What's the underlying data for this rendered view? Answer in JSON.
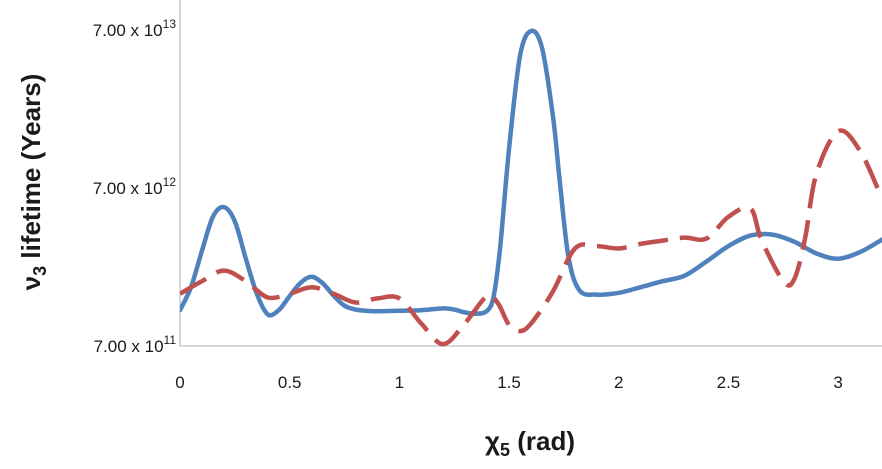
{
  "chart_data": {
    "type": "line",
    "title": "",
    "xlabel": {
      "main": "χ",
      "sub": "5",
      "rest": " (rad)"
    },
    "ylabel": {
      "main": "ν",
      "sub": "3",
      "rest": " lifetime (Years)"
    },
    "y_scale": "log",
    "xlim": [
      0,
      3.2
    ],
    "ylim": [
      700000000000.0,
      70000000000000.0
    ],
    "x_ticks": [
      0,
      0.5,
      1,
      1.5,
      2,
      2.5,
      3
    ],
    "x_tick_labels": [
      "0",
      "0.5",
      "1",
      "1.5",
      "2",
      "2.5",
      "3"
    ],
    "y_ticks": [
      {
        "value": 700000000000.0,
        "mantissa": "7.00 x 10",
        "exponent": "11"
      },
      {
        "value": 7000000000000.0,
        "mantissa": "7.00 x 10",
        "exponent": "12"
      },
      {
        "value": 70000000000000.0,
        "mantissa": "7.00 x 10",
        "exponent": "13"
      }
    ],
    "grid": false,
    "legend": false,
    "series": [
      {
        "color": "#4f81bd",
        "style": "solid",
        "points": [
          [
            0,
            1180000000000.0
          ],
          [
            0.05,
            1650000000000.0
          ],
          [
            0.1,
            2800000000000.0
          ],
          [
            0.15,
            4600000000000.0
          ],
          [
            0.2,
            5300000000000.0
          ],
          [
            0.25,
            4300000000000.0
          ],
          [
            0.3,
            2500000000000.0
          ],
          [
            0.35,
            1500000000000.0
          ],
          [
            0.4,
            1110000000000.0
          ],
          [
            0.45,
            1180000000000.0
          ],
          [
            0.5,
            1450000000000.0
          ],
          [
            0.55,
            1760000000000.0
          ],
          [
            0.6,
            1920000000000.0
          ],
          [
            0.65,
            1750000000000.0
          ],
          [
            0.7,
            1460000000000.0
          ],
          [
            0.75,
            1260000000000.0
          ],
          [
            0.8,
            1190000000000.0
          ],
          [
            0.85,
            1170000000000.0
          ],
          [
            0.9,
            1160000000000.0
          ],
          [
            1.0,
            1170000000000.0
          ],
          [
            1.1,
            1180000000000.0
          ],
          [
            1.2,
            1210000000000.0
          ],
          [
            1.25,
            1190000000000.0
          ],
          [
            1.3,
            1140000000000.0
          ],
          [
            1.35,
            1120000000000.0
          ],
          [
            1.4,
            1170000000000.0
          ],
          [
            1.43,
            1450000000000.0
          ],
          [
            1.46,
            3000000000000.0
          ],
          [
            1.5,
            12500000000000.0
          ],
          [
            1.55,
            48000000000000.0
          ],
          [
            1.6,
            69000000000000.0
          ],
          [
            1.65,
            54000000000000.0
          ],
          [
            1.7,
            20000000000000.0
          ],
          [
            1.73,
            8000000000000.0
          ],
          [
            1.77,
            2600000000000.0
          ],
          [
            1.82,
            1580000000000.0
          ],
          [
            1.9,
            1480000000000.0
          ],
          [
            2.0,
            1520000000000.0
          ],
          [
            2.1,
            1650000000000.0
          ],
          [
            2.2,
            1800000000000.0
          ],
          [
            2.3,
            1950000000000.0
          ],
          [
            2.4,
            2400000000000.0
          ],
          [
            2.5,
            3000000000000.0
          ],
          [
            2.6,
            3500000000000.0
          ],
          [
            2.7,
            3550000000000.0
          ],
          [
            2.8,
            3200000000000.0
          ],
          [
            2.9,
            2700000000000.0
          ],
          [
            3.0,
            2500000000000.0
          ],
          [
            3.1,
            2750000000000.0
          ],
          [
            3.2,
            3300000000000.0
          ]
        ]
      },
      {
        "color": "#c0504d",
        "style": "dashed",
        "points": [
          [
            0,
            1500000000000.0
          ],
          [
            0.1,
            1800000000000.0
          ],
          [
            0.2,
            2100000000000.0
          ],
          [
            0.3,
            1800000000000.0
          ],
          [
            0.4,
            1420000000000.0
          ],
          [
            0.5,
            1500000000000.0
          ],
          [
            0.6,
            1650000000000.0
          ],
          [
            0.7,
            1500000000000.0
          ],
          [
            0.8,
            1320000000000.0
          ],
          [
            0.9,
            1400000000000.0
          ],
          [
            1.0,
            1400000000000.0
          ],
          [
            1.1,
            970000000000.0
          ],
          [
            1.2,
            720000000000.0
          ],
          [
            1.3,
            980000000000.0
          ],
          [
            1.4,
            1450000000000.0
          ],
          [
            1.45,
            1300000000000.0
          ],
          [
            1.5,
            950000000000.0
          ],
          [
            1.55,
            870000000000.0
          ],
          [
            1.6,
            970000000000.0
          ],
          [
            1.7,
            1550000000000.0
          ],
          [
            1.8,
            2900000000000.0
          ],
          [
            1.9,
            3000000000000.0
          ],
          [
            2.0,
            2900000000000.0
          ],
          [
            2.1,
            3100000000000.0
          ],
          [
            2.2,
            3250000000000.0
          ],
          [
            2.3,
            3400000000000.0
          ],
          [
            2.4,
            3350000000000.0
          ],
          [
            2.5,
            4600000000000.0
          ],
          [
            2.6,
            5200000000000.0
          ],
          [
            2.65,
            3300000000000.0
          ],
          [
            2.75,
            1800000000000.0
          ],
          [
            2.8,
            1850000000000.0
          ],
          [
            2.85,
            3400000000000.0
          ],
          [
            2.9,
            8500000000000.0
          ],
          [
            3.0,
            16000000000000.0
          ],
          [
            3.1,
            12000000000000.0
          ],
          [
            3.2,
            6000000000000.0
          ]
        ]
      }
    ]
  }
}
